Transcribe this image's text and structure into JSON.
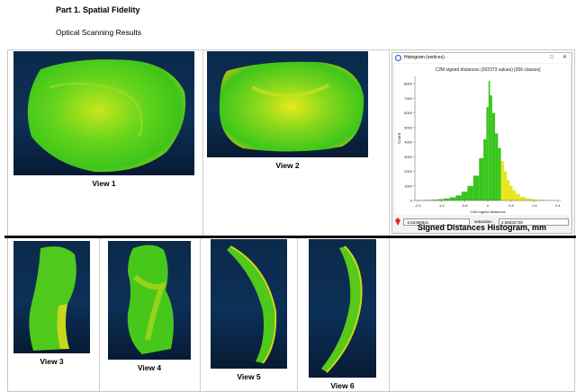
{
  "header": {
    "title": "Part 1. Spatial Fidelity",
    "subtitle": "Optical Scanning Results"
  },
  "views": [
    {
      "label": "View 1"
    },
    {
      "label": "View 2"
    },
    {
      "label": "View 3"
    },
    {
      "label": "View 4"
    },
    {
      "label": "View 5"
    },
    {
      "label": "View 6"
    }
  ],
  "histogram_window": {
    "title": "Histogram (vertices)",
    "minimize_icon": "minimize-icon",
    "close_icon": "close-icon",
    "colors": {
      "bar_green": "#38c51c",
      "bar_yellow": "#e6e61a",
      "panel_blue": "#0c3057"
    }
  },
  "histogram_controls": {
    "min_value": "-2.52450941",
    "saturation_label": "saturation",
    "saturation_value": "2.58832739",
    "marker_icon": "color-marker-icon"
  },
  "histogram_caption": "Signed Distances Histogram, mm",
  "chart_data": {
    "type": "bar",
    "title": "C2M signed distances (202373 values)  [256 classes]",
    "xlabel": "C2M signed distances",
    "ylabel": "Count",
    "xlim": [
      -2.5,
      2.5
    ],
    "ylim": [
      0,
      8500
    ],
    "x_ticks": [
      "-2.4",
      "-1.6",
      "-0.8",
      "0",
      "0.8",
      "1.6",
      "2.4"
    ],
    "y_ticks": [
      "0",
      "1000",
      "2000",
      "3000",
      "4000",
      "5000",
      "6000",
      "7000",
      "8000"
    ],
    "x": [
      -2.4,
      -2.2,
      -2.0,
      -1.8,
      -1.6,
      -1.4,
      -1.2,
      -1.0,
      -0.8,
      -0.6,
      -0.4,
      -0.2,
      -0.1,
      0.0,
      0.05,
      0.1,
      0.2,
      0.3,
      0.4,
      0.5,
      0.6,
      0.7,
      0.8,
      0.9,
      1.0,
      1.2,
      1.4,
      1.6,
      1.8,
      2.0,
      2.2,
      2.4
    ],
    "values": [
      20,
      30,
      40,
      60,
      90,
      140,
      220,
      350,
      600,
      1000,
      1700,
      2900,
      4200,
      6400,
      8200,
      7200,
      6000,
      4600,
      3600,
      2700,
      2000,
      1400,
      1000,
      700,
      450,
      250,
      140,
      80,
      50,
      30,
      20,
      10
    ],
    "grid": false
  }
}
